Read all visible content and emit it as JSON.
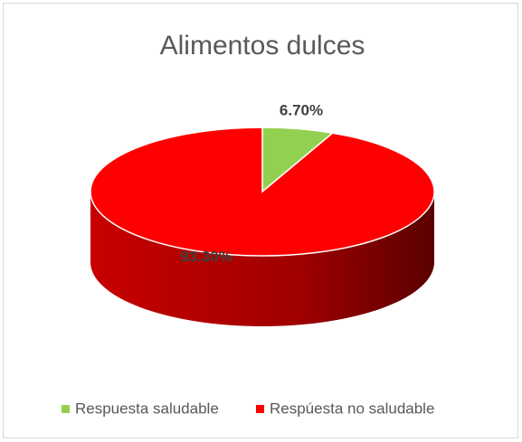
{
  "chart_data": {
    "type": "pie",
    "title": "Alimentos dulces",
    "categories": [
      "Respuesta saludable",
      "Respúesta no saludable"
    ],
    "values": [
      6.7,
      93.3
    ],
    "value_labels": [
      "6.70%",
      "93.30%"
    ],
    "colors": [
      "#92d050",
      "#ff0000"
    ],
    "legend": "bottom"
  }
}
